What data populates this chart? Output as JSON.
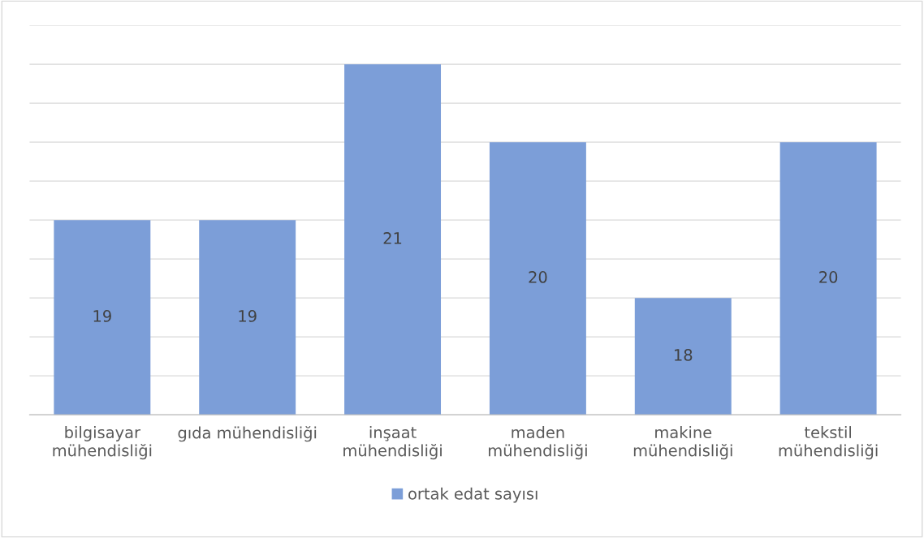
{
  "chart_data": {
    "type": "bar",
    "categories": [
      "bilgisayar\nmühendisliği",
      "gıda mühendisliği",
      "inşaat\nmühendisliği",
      "maden\nmühendisliği",
      "makine\nmühendisliği",
      "tekstil\nmühendisliği"
    ],
    "series": [
      {
        "name": "ortak edat sayısı",
        "color": "#7c9ed8",
        "values": [
          19,
          19,
          21,
          20,
          18,
          20
        ]
      }
    ],
    "ylim": [
      16.5,
      21.5
    ],
    "yticks": [
      {
        "value": 16.5,
        "label": null
      },
      {
        "value": 17,
        "label": null
      },
      {
        "value": 17.5,
        "label": null
      },
      {
        "value": 18,
        "label": null
      },
      {
        "value": 18.5,
        "label": null
      },
      {
        "value": 19,
        "label": null
      },
      {
        "value": 19.5,
        "label": null
      },
      {
        "value": 20,
        "label": null
      },
      {
        "value": 20.5,
        "label": null
      },
      {
        "value": 21,
        "label": null
      },
      {
        "value": 21.5,
        "label": null
      }
    ],
    "tick_labels": "x",
    "grid": "y",
    "data_labels": true,
    "legend": "bottom"
  }
}
